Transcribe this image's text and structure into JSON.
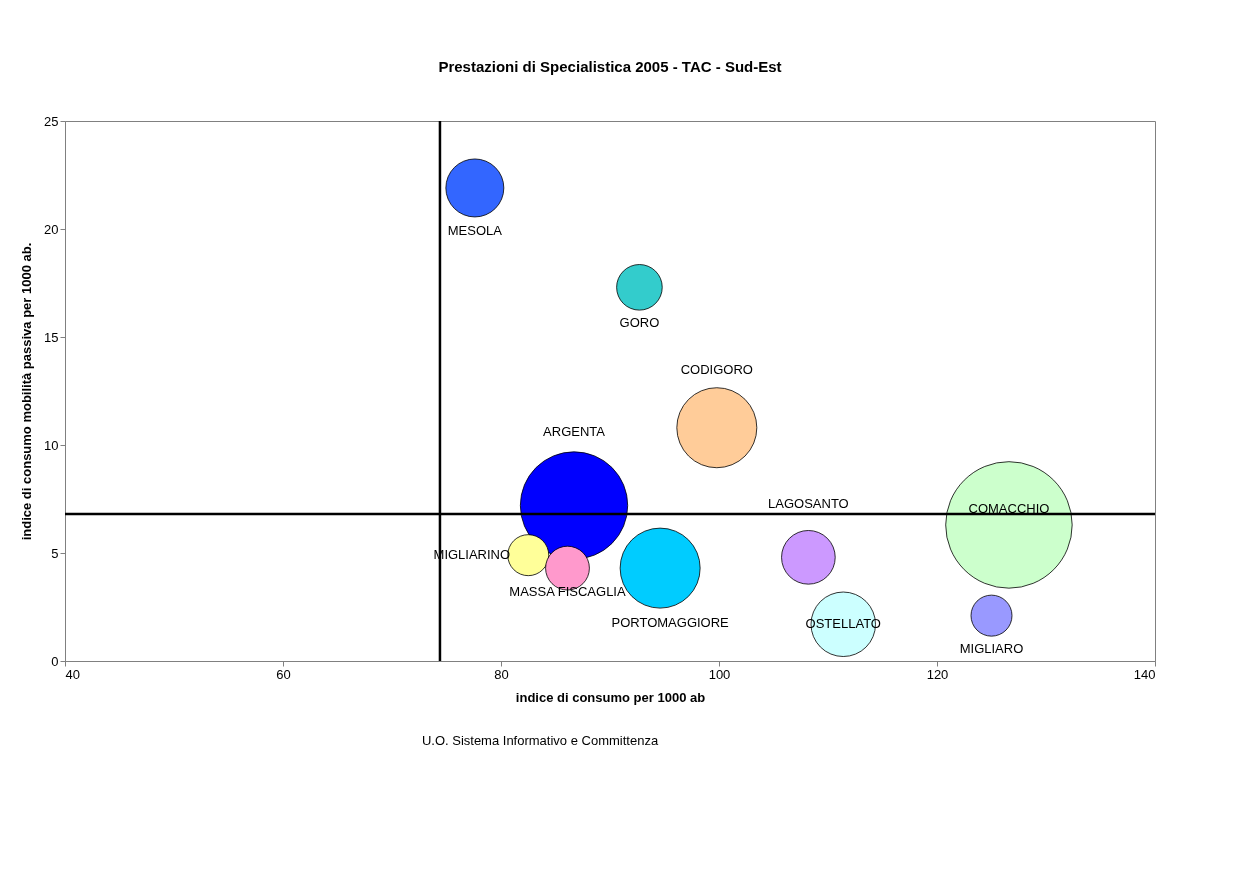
{
  "chart_data": {
    "type": "bubble",
    "title": "Prestazioni di Specialistica 2005 - TAC - Sud-Est",
    "xlabel": "indice di consumo per 1000 ab",
    "ylabel": "indice di consumo mobilità passiva per 1000 ab.",
    "xlim": [
      40,
      140
    ],
    "xticks": [
      40,
      60,
      80,
      100,
      120,
      140
    ],
    "ylim": [
      0,
      25
    ],
    "yticks": [
      0,
      5,
      10,
      15,
      20,
      25
    ],
    "grid": false,
    "legend": false,
    "series": [
      {
        "name": "MESOLA",
        "color": "#3366ff",
        "x": [
          77.6
        ],
        "values": [
          21.9
        ],
        "sizes": [
          0.21
        ]
      },
      {
        "name": "GORO",
        "color": "#33cccc",
        "x": [
          92.7
        ],
        "values": [
          17.3
        ],
        "sizes": [
          0.13
        ]
      },
      {
        "name": "CODIGORO",
        "color": "#ffcc99",
        "x": [
          99.8
        ],
        "values": [
          10.8
        ],
        "sizes": [
          0.4
        ]
      },
      {
        "name": "ARGENTA",
        "color": "#0000ff",
        "x": [
          86.7
        ],
        "values": [
          7.2
        ],
        "sizes": [
          0.72
        ]
      },
      {
        "name": "MIGLIARINO",
        "color": "#ffff99",
        "x": [
          82.5
        ],
        "values": [
          4.9
        ],
        "sizes": [
          0.105
        ]
      },
      {
        "name": "MASSA FISCAGLIA",
        "color": "#ff99cc",
        "x": [
          86.1
        ],
        "values": [
          4.3
        ],
        "sizes": [
          0.12
        ]
      },
      {
        "name": "PORTOMAGGIORE",
        "color": "#00ccff",
        "x": [
          94.6
        ],
        "values": [
          4.3
        ],
        "sizes": [
          0.4
        ]
      },
      {
        "name": "LAGOSANTO",
        "color": "#cc99ff",
        "x": [
          108.2
        ],
        "values": [
          4.8
        ],
        "sizes": [
          0.18
        ]
      },
      {
        "name": "OSTELLATO",
        "color": "#ccffff",
        "x": [
          111.4
        ],
        "values": [
          1.7
        ],
        "sizes": [
          0.26
        ]
      },
      {
        "name": "COMACCHIO",
        "color": "#ccffcc",
        "x": [
          126.6
        ],
        "values": [
          6.3
        ],
        "sizes": [
          1
        ]
      },
      {
        "name": "MIGLIARO",
        "color": "#9999ff",
        "x": [
          125.0
        ],
        "values": [
          2.1
        ],
        "sizes": [
          0.105
        ]
      }
    ],
    "ref_lines": [
      {
        "axis": "x",
        "value": 74.4,
        "color": "#000000"
      },
      {
        "axis": "y",
        "value": 6.8,
        "color": "#000000"
      }
    ],
    "annotations": [
      "U.O. Sistema Informativo e Committenza"
    ]
  }
}
